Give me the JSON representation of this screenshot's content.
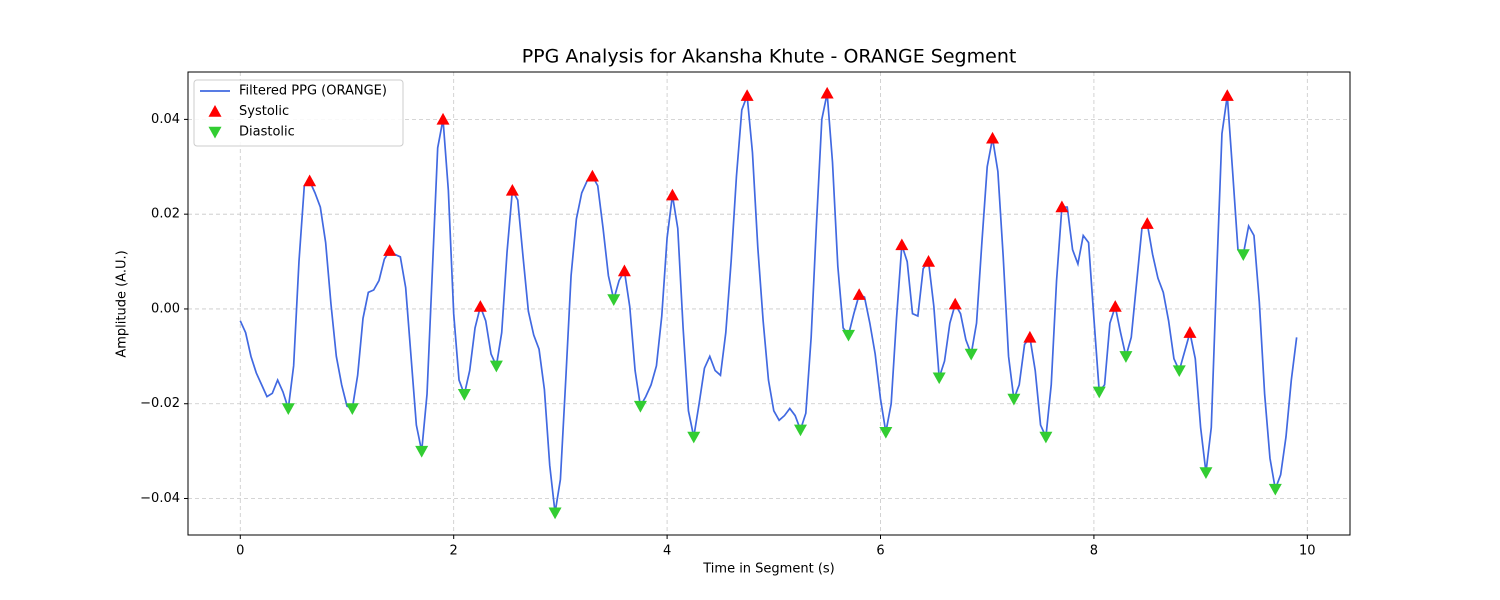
{
  "chart_data": {
    "type": "line",
    "title": "PPG Analysis for Akansha Khute - ORANGE Segment",
    "xlabel": "Time in Segment (s)",
    "ylabel": "Amplitude (A.U.)",
    "xlim": [
      -0.49,
      10.4
    ],
    "ylim": [
      -0.0477,
      0.05
    ],
    "xticks": [
      0,
      2,
      4,
      6,
      8,
      10
    ],
    "yticks": [
      {
        "value": -0.04,
        "label": "−0.04"
      },
      {
        "value": -0.02,
        "label": "−0.02"
      },
      {
        "value": 0,
        "label": "0.00"
      },
      {
        "value": 0.02,
        "label": "0.02"
      },
      {
        "value": 0.04,
        "label": "0.04"
      }
    ],
    "grid": true,
    "legend": "upper left",
    "series": [
      {
        "name": "Filtered PPG (ORANGE)",
        "color": "#4169e1",
        "type": "line",
        "x": [
          0,
          0.05,
          0.1,
          0.15,
          0.2,
          0.25,
          0.3,
          0.35,
          0.4,
          0.45,
          0.5,
          0.55,
          0.6,
          0.65,
          0.7,
          0.75,
          0.8,
          0.85,
          0.9,
          0.95,
          1.0,
          1.05,
          1.1,
          1.15,
          1.2,
          1.25,
          1.3,
          1.35,
          1.4,
          1.45,
          1.5,
          1.55,
          1.6,
          1.65,
          1.7,
          1.75,
          1.8,
          1.85,
          1.9,
          1.95,
          2.0,
          2.05,
          2.1,
          2.15,
          2.2,
          2.25,
          2.3,
          2.35,
          2.4,
          2.45,
          2.5,
          2.55,
          2.6,
          2.65,
          2.7,
          2.75,
          2.8,
          2.85,
          2.9,
          2.95,
          3.0,
          3.05,
          3.1,
          3.15,
          3.2,
          3.25,
          3.3,
          3.35,
          3.4,
          3.45,
          3.5,
          3.55,
          3.6,
          3.65,
          3.7,
          3.75,
          3.8,
          3.85,
          3.9,
          3.95,
          4.0,
          4.05,
          4.1,
          4.15,
          4.2,
          4.25,
          4.3,
          4.35,
          4.4,
          4.45,
          4.5,
          4.55,
          4.6,
          4.65,
          4.7,
          4.75,
          4.8,
          4.85,
          4.9,
          4.95,
          5.0,
          5.05,
          5.1,
          5.15,
          5.2,
          5.25,
          5.3,
          5.35,
          5.4,
          5.45,
          5.5,
          5.55,
          5.6,
          5.65,
          5.7,
          5.75,
          5.8,
          5.85,
          5.9,
          5.95,
          6.0,
          6.05,
          6.1,
          6.15,
          6.2,
          6.25,
          6.3,
          6.35,
          6.4,
          6.45,
          6.5,
          6.55,
          6.6,
          6.65,
          6.7,
          6.75,
          6.8,
          6.85,
          6.9,
          6.95,
          7.0,
          7.05,
          7.1,
          7.15,
          7.2,
          7.25,
          7.3,
          7.35,
          7.4,
          7.45,
          7.5,
          7.55,
          7.6,
          7.65,
          7.7,
          7.75,
          7.8,
          7.85,
          7.9,
          7.95,
          8.0,
          8.05,
          8.1,
          8.15,
          8.2,
          8.25,
          8.3,
          8.35,
          8.4,
          8.45,
          8.5,
          8.55,
          8.6,
          8.65,
          8.7,
          8.75,
          8.8,
          8.85,
          8.9,
          8.95,
          9.0,
          9.05,
          9.1,
          9.15,
          9.2,
          9.25,
          9.3,
          9.35,
          9.4,
          9.45,
          9.5,
          9.55,
          9.6,
          9.65,
          9.7,
          9.75,
          9.8,
          9.85,
          9.9
        ],
        "values": [
          -0.0025,
          -0.005,
          -0.01,
          -0.0135,
          -0.016,
          -0.0185,
          -0.0178,
          -0.015,
          -0.0175,
          -0.021,
          -0.012,
          0.01,
          0.026,
          0.027,
          0.0245,
          0.0215,
          0.014,
          0.001,
          -0.01,
          -0.016,
          -0.0205,
          -0.021,
          -0.014,
          -0.002,
          0.0035,
          0.004,
          0.006,
          0.0105,
          0.0123,
          0.0115,
          0.011,
          0.0045,
          -0.01,
          -0.0245,
          -0.03,
          -0.018,
          0.008,
          0.034,
          0.04,
          0.025,
          -0.001,
          -0.015,
          -0.018,
          -0.013,
          -0.004,
          0.0005,
          -0.0025,
          -0.0095,
          -0.012,
          -0.005,
          0.012,
          0.025,
          0.023,
          0.011,
          -0.0005,
          -0.0055,
          -0.0085,
          -0.017,
          -0.033,
          -0.043,
          -0.036,
          -0.015,
          0.007,
          0.019,
          0.0245,
          0.027,
          0.028,
          0.026,
          0.017,
          0.007,
          0.002,
          0.006,
          0.008,
          0.0005,
          -0.013,
          -0.0205,
          -0.0185,
          -0.016,
          -0.012,
          -0.0015,
          0.015,
          0.024,
          0.017,
          -0.004,
          -0.0215,
          -0.027,
          -0.02,
          -0.0125,
          -0.01,
          -0.013,
          -0.014,
          -0.005,
          0.01,
          0.028,
          0.042,
          0.045,
          0.033,
          0.013,
          -0.0025,
          -0.015,
          -0.0215,
          -0.0235,
          -0.0225,
          -0.021,
          -0.0225,
          -0.0255,
          -0.022,
          -0.006,
          0.018,
          0.04,
          0.0455,
          0.031,
          0.009,
          -0.004,
          -0.0055,
          -0.001,
          0.003,
          0.0025,
          -0.003,
          -0.0095,
          -0.019,
          -0.026,
          -0.02,
          -0.002,
          0.0135,
          0.01,
          -0.001,
          -0.0015,
          0.0085,
          0.01,
          0.0005,
          -0.0145,
          -0.011,
          -0.003,
          0.001,
          -0.001,
          -0.0065,
          -0.0095,
          -0.003,
          0.014,
          0.03,
          0.036,
          0.029,
          0.011,
          -0.01,
          -0.019,
          -0.016,
          -0.0075,
          -0.006,
          -0.013,
          -0.0245,
          -0.027,
          -0.016,
          0.006,
          0.0215,
          0.0215,
          0.0125,
          0.0095,
          0.0155,
          0.014,
          -0.002,
          -0.0175,
          -0.016,
          -0.003,
          0.0005,
          -0.005,
          -0.01,
          -0.006,
          0.0055,
          0.017,
          0.018,
          0.0115,
          0.0065,
          0.0035,
          -0.0025,
          -0.0105,
          -0.013,
          -0.009,
          -0.005,
          -0.0105,
          -0.025,
          -0.0345,
          -0.025,
          0.007,
          0.037,
          0.045,
          0.029,
          0.0125,
          0.0115,
          0.0175,
          0.0155,
          0.0015,
          -0.018,
          -0.0315,
          -0.038,
          -0.035,
          -0.027,
          -0.015,
          -0.006
        ]
      },
      {
        "name": "Systolic",
        "color": "#ff0000",
        "type": "scatter",
        "marker": "triangle-up",
        "x": [
          0.65,
          1.4,
          1.9,
          2.25,
          2.55,
          3.3,
          3.6,
          4.05,
          4.75,
          5.5,
          5.8,
          6.2,
          6.45,
          6.7,
          7.05,
          7.4,
          7.7,
          8.2,
          8.5,
          8.9,
          9.25
        ],
        "values": [
          0.027,
          0.0123,
          0.04,
          0.0005,
          0.025,
          0.028,
          0.008,
          0.024,
          0.045,
          0.0455,
          0.003,
          0.0135,
          0.01,
          0.001,
          0.036,
          -0.006,
          0.0215,
          0.0005,
          0.018,
          -0.005,
          0.045
        ]
      },
      {
        "name": "Diastolic",
        "color": "#32cd32",
        "type": "scatter",
        "marker": "triangle-down",
        "x": [
          0.45,
          1.05,
          1.7,
          2.1,
          2.4,
          2.95,
          3.5,
          3.75,
          4.25,
          5.25,
          5.7,
          6.05,
          6.55,
          6.85,
          7.25,
          7.55,
          8.05,
          8.3,
          8.8,
          9.05,
          9.4,
          9.7
        ],
        "values": [
          -0.021,
          -0.021,
          -0.03,
          -0.018,
          -0.012,
          -0.043,
          0.002,
          -0.0205,
          -0.027,
          -0.0255,
          -0.0055,
          -0.026,
          -0.0145,
          -0.0095,
          -0.019,
          -0.027,
          -0.0175,
          -0.01,
          -0.013,
          -0.0345,
          0.0115,
          -0.038
        ]
      }
    ]
  }
}
